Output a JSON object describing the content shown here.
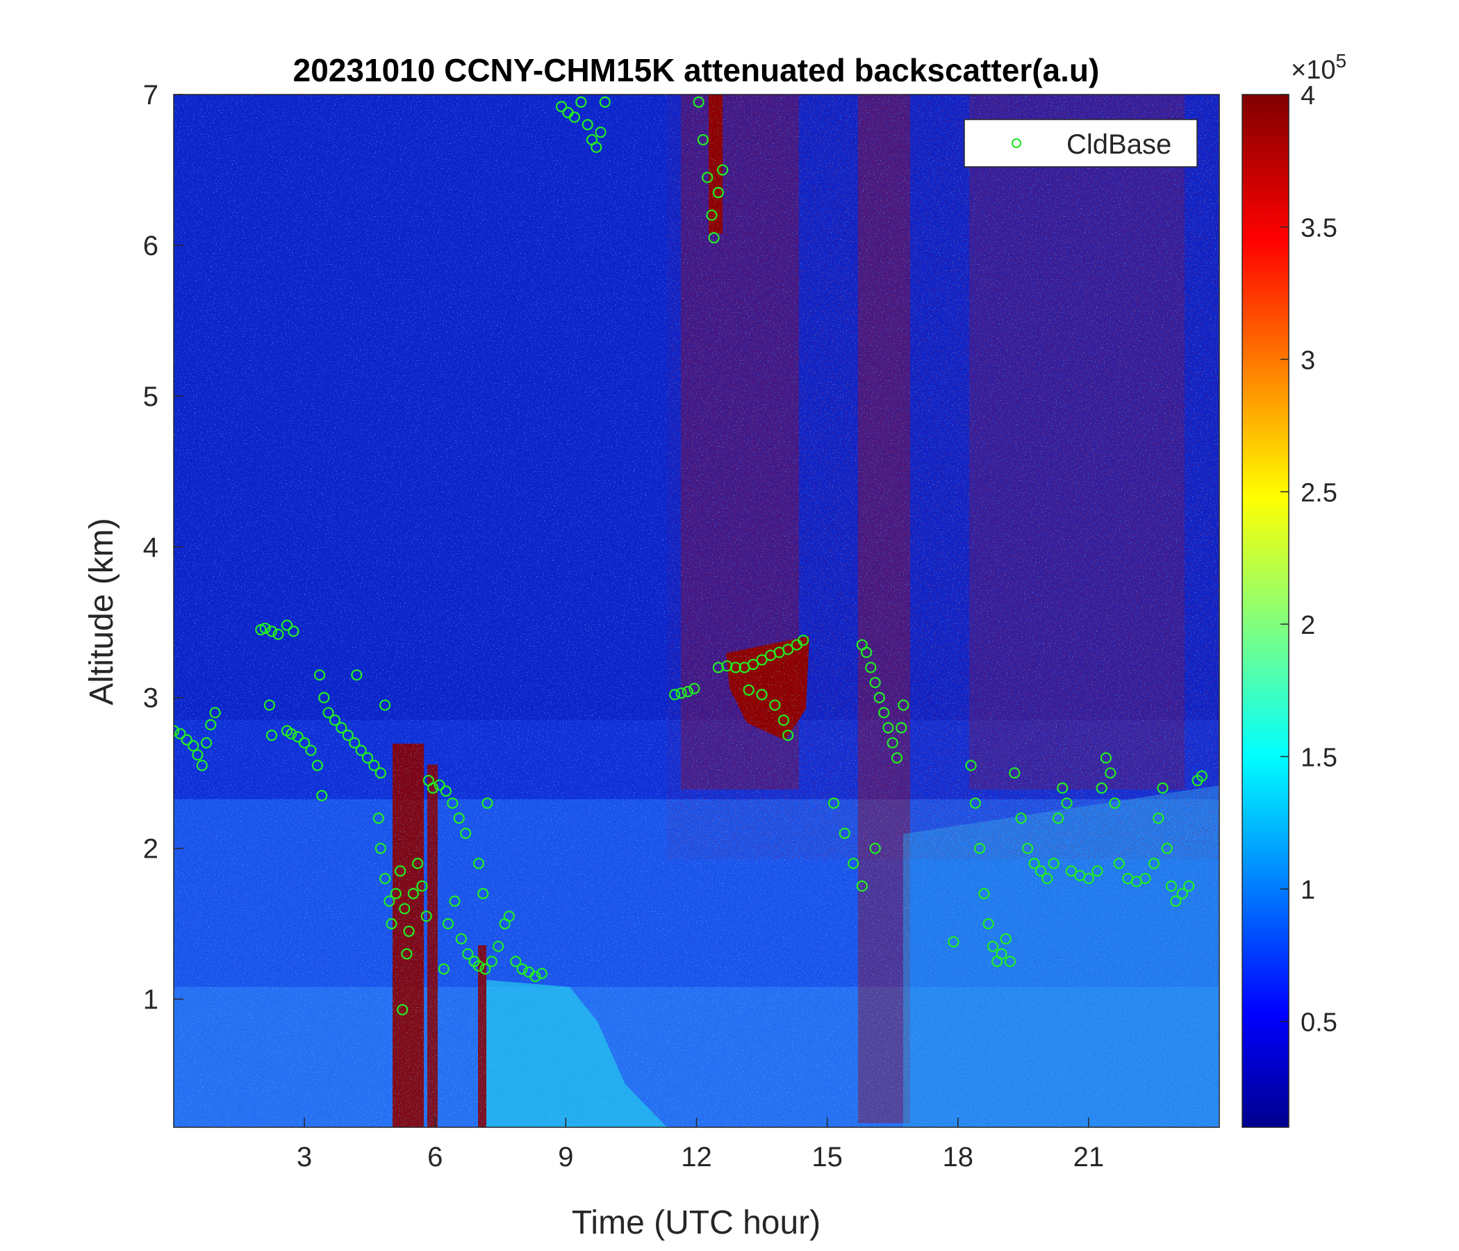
{
  "chart_data": {
    "type": "heatmap",
    "title": "20231010 CCNY-CHM15K attenuated backscatter(a.u)",
    "xlabel": "Time (UTC hour)",
    "ylabel": "Altitude (km)",
    "xlim": [
      0,
      24
    ],
    "ylim": [
      0.15,
      7
    ],
    "x_ticks": [
      3,
      6,
      9,
      12,
      15,
      18,
      21
    ],
    "y_ticks": [
      1,
      2,
      3,
      4,
      5,
      6,
      7
    ],
    "colorbar": {
      "colormap": "jet",
      "clim": [
        0.1,
        4
      ],
      "ticks": [
        0.5,
        1,
        1.5,
        2,
        2.5,
        3,
        3.5,
        4
      ],
      "exponent_label": "×10",
      "exponent_power": "5"
    },
    "legend": {
      "location": "top-right",
      "entries": [
        {
          "name": "CldBase",
          "color": "#1ae61a",
          "marker": "circle"
        }
      ]
    },
    "marker_color": "#22ee22",
    "cloud_base_series": {
      "name": "CldBase",
      "points": [
        [
          0.0,
          2.78
        ],
        [
          0.15,
          2.76
        ],
        [
          0.3,
          2.72
        ],
        [
          0.45,
          2.68
        ],
        [
          0.55,
          2.62
        ],
        [
          0.65,
          2.55
        ],
        [
          0.75,
          2.7
        ],
        [
          0.85,
          2.82
        ],
        [
          0.95,
          2.9
        ],
        [
          2.0,
          3.45
        ],
        [
          2.1,
          3.46
        ],
        [
          2.25,
          3.44
        ],
        [
          2.4,
          3.42
        ],
        [
          2.6,
          3.48
        ],
        [
          2.75,
          3.44
        ],
        [
          2.2,
          2.95
        ],
        [
          2.25,
          2.75
        ],
        [
          2.6,
          2.78
        ],
        [
          2.7,
          2.76
        ],
        [
          2.85,
          2.74
        ],
        [
          3.0,
          2.7
        ],
        [
          3.15,
          2.65
        ],
        [
          3.3,
          2.55
        ],
        [
          3.4,
          2.35
        ],
        [
          3.35,
          3.15
        ],
        [
          3.45,
          3.0
        ],
        [
          3.55,
          2.9
        ],
        [
          3.7,
          2.85
        ],
        [
          3.85,
          2.8
        ],
        [
          4.0,
          2.75
        ],
        [
          4.15,
          2.7
        ],
        [
          4.3,
          2.65
        ],
        [
          4.45,
          2.6
        ],
        [
          4.6,
          2.55
        ],
        [
          4.75,
          2.5
        ],
        [
          4.85,
          2.95
        ],
        [
          4.2,
          3.15
        ],
        [
          4.7,
          2.2
        ],
        [
          4.75,
          2.0
        ],
        [
          4.85,
          1.8
        ],
        [
          4.95,
          1.65
        ],
        [
          5.0,
          1.5
        ],
        [
          5.1,
          1.7
        ],
        [
          5.2,
          1.85
        ],
        [
          5.3,
          1.6
        ],
        [
          5.4,
          1.45
        ],
        [
          5.5,
          1.7
        ],
        [
          5.6,
          1.9
        ],
        [
          5.7,
          1.75
        ],
        [
          5.8,
          1.55
        ],
        [
          5.25,
          0.93
        ],
        [
          5.35,
          1.3
        ],
        [
          5.85,
          2.45
        ],
        [
          5.95,
          2.4
        ],
        [
          6.1,
          2.42
        ],
        [
          6.25,
          2.38
        ],
        [
          6.4,
          2.3
        ],
        [
          6.55,
          2.2
        ],
        [
          6.7,
          2.1
        ],
        [
          6.2,
          1.2
        ],
        [
          6.3,
          1.5
        ],
        [
          6.45,
          1.65
        ],
        [
          6.6,
          1.4
        ],
        [
          6.75,
          1.3
        ],
        [
          6.9,
          1.25
        ],
        [
          7.0,
          1.22
        ],
        [
          7.15,
          1.2
        ],
        [
          7.3,
          1.25
        ],
        [
          7.45,
          1.35
        ],
        [
          7.6,
          1.5
        ],
        [
          7.7,
          1.55
        ],
        [
          7.0,
          1.9
        ],
        [
          7.1,
          1.7
        ],
        [
          7.2,
          2.3
        ],
        [
          7.85,
          1.25
        ],
        [
          8.0,
          1.2
        ],
        [
          8.15,
          1.18
        ],
        [
          8.3,
          1.15
        ],
        [
          8.45,
          1.17
        ],
        [
          8.9,
          6.92
        ],
        [
          9.05,
          6.88
        ],
        [
          9.2,
          6.85
        ],
        [
          9.35,
          6.95
        ],
        [
          9.5,
          6.8
        ],
        [
          9.6,
          6.7
        ],
        [
          9.7,
          6.65
        ],
        [
          9.8,
          6.75
        ],
        [
          9.9,
          6.95
        ],
        [
          11.5,
          3.02
        ],
        [
          11.65,
          3.03
        ],
        [
          11.8,
          3.04
        ],
        [
          11.95,
          3.06
        ],
        [
          12.05,
          6.95
        ],
        [
          12.15,
          6.7
        ],
        [
          12.25,
          6.45
        ],
        [
          12.35,
          6.2
        ],
        [
          12.4,
          6.05
        ],
        [
          12.5,
          6.35
        ],
        [
          12.6,
          6.5
        ],
        [
          12.5,
          3.2
        ],
        [
          12.7,
          3.21
        ],
        [
          12.9,
          3.2
        ],
        [
          13.1,
          3.2
        ],
        [
          13.3,
          3.22
        ],
        [
          13.5,
          3.25
        ],
        [
          13.7,
          3.28
        ],
        [
          13.9,
          3.3
        ],
        [
          14.1,
          3.32
        ],
        [
          14.3,
          3.35
        ],
        [
          14.45,
          3.38
        ],
        [
          13.2,
          3.05
        ],
        [
          13.5,
          3.02
        ],
        [
          13.8,
          2.95
        ],
        [
          14.0,
          2.85
        ],
        [
          14.1,
          2.75
        ],
        [
          15.15,
          2.3
        ],
        [
          15.4,
          2.1
        ],
        [
          15.6,
          1.9
        ],
        [
          15.8,
          1.75
        ],
        [
          15.8,
          3.35
        ],
        [
          15.9,
          3.3
        ],
        [
          16.0,
          3.2
        ],
        [
          16.1,
          3.1
        ],
        [
          16.2,
          3.0
        ],
        [
          16.3,
          2.9
        ],
        [
          16.4,
          2.8
        ],
        [
          16.5,
          2.7
        ],
        [
          16.6,
          2.6
        ],
        [
          16.7,
          2.8
        ],
        [
          16.75,
          2.95
        ],
        [
          16.1,
          2.0
        ],
        [
          17.9,
          1.38
        ],
        [
          18.3,
          2.55
        ],
        [
          18.4,
          2.3
        ],
        [
          18.5,
          2.0
        ],
        [
          18.6,
          1.7
        ],
        [
          18.7,
          1.5
        ],
        [
          18.8,
          1.35
        ],
        [
          18.9,
          1.25
        ],
        [
          19.0,
          1.3
        ],
        [
          19.1,
          1.4
        ],
        [
          19.2,
          1.25
        ],
        [
          19.3,
          2.5
        ],
        [
          19.45,
          2.2
        ],
        [
          19.6,
          2.0
        ],
        [
          19.75,
          1.9
        ],
        [
          19.9,
          1.85
        ],
        [
          20.05,
          1.8
        ],
        [
          20.2,
          1.9
        ],
        [
          20.3,
          2.2
        ],
        [
          20.4,
          2.4
        ],
        [
          20.5,
          2.3
        ],
        [
          20.6,
          1.85
        ],
        [
          20.8,
          1.82
        ],
        [
          21.0,
          1.8
        ],
        [
          21.2,
          1.85
        ],
        [
          21.3,
          2.4
        ],
        [
          21.4,
          2.6
        ],
        [
          21.5,
          2.5
        ],
        [
          21.6,
          2.3
        ],
        [
          21.7,
          1.9
        ],
        [
          21.9,
          1.8
        ],
        [
          22.1,
          1.78
        ],
        [
          22.3,
          1.8
        ],
        [
          22.5,
          1.9
        ],
        [
          22.6,
          2.2
        ],
        [
          22.7,
          2.4
        ],
        [
          22.8,
          2.0
        ],
        [
          22.9,
          1.75
        ],
        [
          23.0,
          1.65
        ],
        [
          23.15,
          1.7
        ],
        [
          23.3,
          1.75
        ],
        [
          23.5,
          2.45
        ],
        [
          23.6,
          2.48
        ]
      ]
    }
  }
}
